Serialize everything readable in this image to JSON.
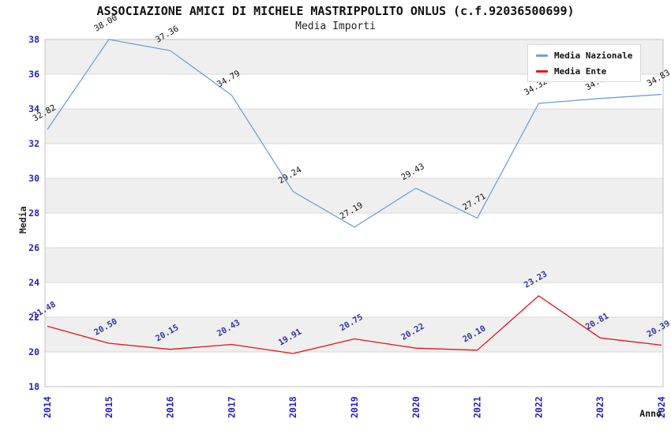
{
  "title": "ASSOCIAZIONE AMICI DI MICHELE MASTRIPPOLITO ONLUS (c.f.92036500699)",
  "subtitle": "Media Importi",
  "legend": {
    "entries": [
      {
        "label": "Media Nazionale",
        "color": "#6FA0D8"
      },
      {
        "label": "Media Ente",
        "color": "#EE1111"
      }
    ]
  },
  "colors": {
    "axis_tick_text": "#2222CC",
    "national_line": "#6FA0D8",
    "national_point_label": "#111111",
    "ente_line": "#EE1111",
    "ente_point_label": "#3333AA",
    "band_fill": "#efefef",
    "gridline": "#d9d9d9",
    "plot_border": "#c0c0c0",
    "axis_title_text": "#222222"
  },
  "chart_data": {
    "type": "line",
    "title": "ASSOCIAZIONE AMICI DI MICHELE MASTRIPPOLITO ONLUS (c.f.92036500699)",
    "subtitle": "Media Importi",
    "xlabel": "Anno",
    "ylabel": "Media",
    "x": [
      2014,
      2015,
      2016,
      2017,
      2018,
      2019,
      2020,
      2021,
      2022,
      2023,
      2024
    ],
    "series": [
      {
        "name": "Media Nazionale",
        "values": [
          32.82,
          38.0,
          37.36,
          34.79,
          29.24,
          27.19,
          29.43,
          27.71,
          34.32,
          34.6,
          34.83
        ]
      },
      {
        "name": "Media Ente",
        "values": [
          21.48,
          20.5,
          20.15,
          20.43,
          19.91,
          20.75,
          20.22,
          20.1,
          23.23,
          20.81,
          20.39
        ]
      }
    ],
    "ylim": [
      18,
      38
    ],
    "ytick_step": 2,
    "grid": "horizontal-bands",
    "legend_position": "top-right",
    "point_labels": "values with 2 decimals, rotated -30deg"
  }
}
